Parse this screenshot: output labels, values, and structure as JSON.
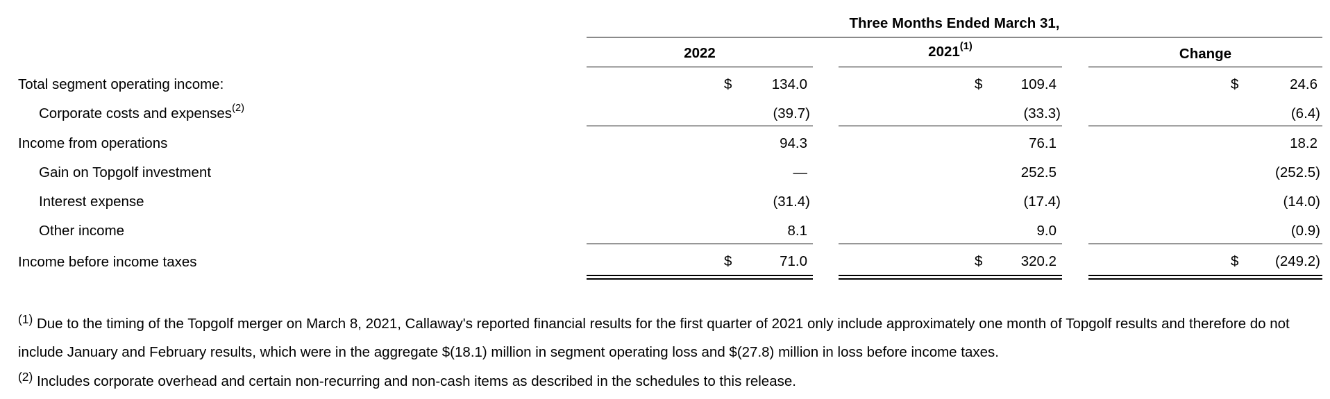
{
  "header": {
    "period": "Three Months Ended March 31,",
    "col_2022": "2022",
    "col_2021": "2021",
    "col_2021_note": "(1)",
    "col_change": "Change"
  },
  "rows": [
    {
      "label": "Total segment operating income:",
      "note": "",
      "v2022": "134.0",
      "v2021": "109.4",
      "change": "24.6",
      "dollar": "$"
    },
    {
      "label": "Corporate costs and expenses",
      "note": "(2)",
      "v2022": "(39.7)",
      "v2021": "(33.3)",
      "change": "(6.4)",
      "dollar": ""
    },
    {
      "label": "Income from operations",
      "note": "",
      "v2022": "94.3",
      "v2021": "76.1",
      "change": "18.2",
      "dollar": ""
    },
    {
      "label": "Gain on Topgolf investment",
      "note": "",
      "v2022": "—",
      "v2021": "252.5",
      "change": "(252.5)",
      "dollar": ""
    },
    {
      "label": "Interest expense",
      "note": "",
      "v2022": "(31.4)",
      "v2021": "(17.4)",
      "change": "(14.0)",
      "dollar": ""
    },
    {
      "label": "Other income",
      "note": "",
      "v2022": "8.1",
      "v2021": "9.0",
      "change": "(0.9)",
      "dollar": ""
    },
    {
      "label": "Income before income taxes",
      "note": "",
      "v2022": "71.0",
      "v2021": "320.2",
      "change": "(249.2)",
      "dollar": "$"
    }
  ],
  "footnotes": [
    {
      "marker": "(1)",
      "text": " Due to the timing of the Topgolf merger on March 8, 2021, Callaway's reported financial results for the first quarter of 2021 only include approximately one month of Topgolf results and therefore do not include January and February results, which were in the aggregate $(18.1) million in segment operating loss and $(27.8) million in loss before income taxes."
    },
    {
      "marker": "(2)",
      "text": " Includes corporate overhead and certain non-recurring and non-cash items as described in the schedules to this release."
    }
  ]
}
